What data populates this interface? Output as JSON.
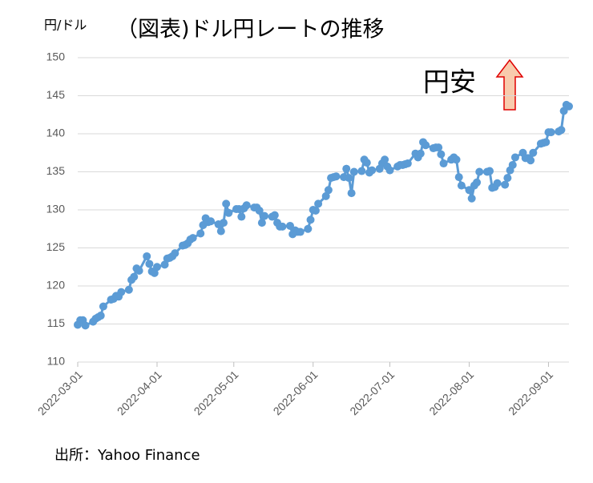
{
  "chart_data": {
    "type": "line",
    "title": "（図表)ドル円レートの推移",
    "y_label": "円/ドル",
    "annotation": "円安",
    "source": "出所：Yahoo  Finance",
    "color": "#5b9bd5",
    "grid": true,
    "xlim": [
      "2022-03-01",
      "2022-09-09"
    ],
    "xticks": [
      "2022-03-01",
      "2022-04-01",
      "2022-05-01",
      "2022-06-01",
      "2022-07-01",
      "2022-08-01",
      "2022-09-01"
    ],
    "ylim": [
      110,
      150
    ],
    "yticks": [
      110,
      115,
      120,
      125,
      130,
      135,
      140,
      145,
      150
    ],
    "x": [
      "2022-03-01",
      "2022-03-02",
      "2022-03-03",
      "2022-03-04",
      "2022-03-07",
      "2022-03-08",
      "2022-03-09",
      "2022-03-10",
      "2022-03-11",
      "2022-03-14",
      "2022-03-15",
      "2022-03-16",
      "2022-03-17",
      "2022-03-18",
      "2022-03-21",
      "2022-03-22",
      "2022-03-23",
      "2022-03-24",
      "2022-03-25",
      "2022-03-28",
      "2022-03-29",
      "2022-03-30",
      "2022-03-31",
      "2022-04-01",
      "2022-04-04",
      "2022-04-05",
      "2022-04-06",
      "2022-04-07",
      "2022-04-08",
      "2022-04-11",
      "2022-04-12",
      "2022-04-13",
      "2022-04-14",
      "2022-04-15",
      "2022-04-18",
      "2022-04-19",
      "2022-04-20",
      "2022-04-21",
      "2022-04-22",
      "2022-04-25",
      "2022-04-26",
      "2022-04-27",
      "2022-04-28",
      "2022-04-29",
      "2022-05-02",
      "2022-05-03",
      "2022-05-04",
      "2022-05-05",
      "2022-05-06",
      "2022-05-09",
      "2022-05-10",
      "2022-05-11",
      "2022-05-12",
      "2022-05-13",
      "2022-05-16",
      "2022-05-17",
      "2022-05-18",
      "2022-05-19",
      "2022-05-20",
      "2022-05-23",
      "2022-05-24",
      "2022-05-25",
      "2022-05-26",
      "2022-05-27",
      "2022-05-30",
      "2022-05-31",
      "2022-06-01",
      "2022-06-02",
      "2022-06-03",
      "2022-06-06",
      "2022-06-07",
      "2022-06-08",
      "2022-06-09",
      "2022-06-10",
      "2022-06-13",
      "2022-06-14",
      "2022-06-15",
      "2022-06-16",
      "2022-06-17",
      "2022-06-20",
      "2022-06-21",
      "2022-06-22",
      "2022-06-23",
      "2022-06-24",
      "2022-06-27",
      "2022-06-28",
      "2022-06-29",
      "2022-06-30",
      "2022-07-01",
      "2022-07-04",
      "2022-07-05",
      "2022-07-06",
      "2022-07-07",
      "2022-07-08",
      "2022-07-11",
      "2022-07-12",
      "2022-07-13",
      "2022-07-14",
      "2022-07-15",
      "2022-07-18",
      "2022-07-19",
      "2022-07-20",
      "2022-07-21",
      "2022-07-22",
      "2022-07-25",
      "2022-07-26",
      "2022-07-27",
      "2022-07-28",
      "2022-07-29",
      "2022-08-01",
      "2022-08-02",
      "2022-08-03",
      "2022-08-04",
      "2022-08-05",
      "2022-08-08",
      "2022-08-09",
      "2022-08-10",
      "2022-08-11",
      "2022-08-12",
      "2022-08-15",
      "2022-08-16",
      "2022-08-17",
      "2022-08-18",
      "2022-08-19",
      "2022-08-22",
      "2022-08-23",
      "2022-08-24",
      "2022-08-25",
      "2022-08-26",
      "2022-08-29",
      "2022-08-30",
      "2022-08-31",
      "2022-09-01",
      "2022-09-02",
      "2022-09-05",
      "2022-09-06",
      "2022-09-07",
      "2022-09-08",
      "2022-09-09"
    ],
    "values": [
      114.9,
      115.5,
      115.5,
      114.8,
      115.3,
      115.7,
      115.9,
      116.1,
      117.3,
      118.2,
      118.3,
      118.7,
      118.6,
      119.2,
      119.5,
      120.8,
      121.2,
      122.3,
      122.0,
      123.9,
      122.9,
      121.9,
      121.7,
      122.5,
      122.8,
      123.6,
      123.7,
      123.9,
      124.3,
      125.3,
      125.4,
      125.6,
      126.1,
      126.3,
      126.9,
      128.0,
      128.9,
      128.4,
      128.5,
      128.1,
      127.2,
      128.3,
      130.8,
      129.6,
      130.1,
      130.1,
      129.1,
      130.2,
      130.6,
      130.3,
      130.3,
      129.9,
      128.3,
      129.2,
      129.1,
      129.3,
      128.3,
      127.8,
      127.8,
      127.9,
      126.8,
      127.3,
      127.1,
      127.1,
      127.5,
      128.7,
      130.0,
      129.9,
      130.8,
      131.8,
      132.6,
      134.2,
      134.3,
      134.4,
      134.3,
      135.4,
      134.2,
      132.2,
      135.0,
      135.1,
      136.6,
      136.2,
      134.9,
      135.2,
      135.4,
      136.1,
      136.6,
      135.7,
      135.2,
      135.7,
      135.9,
      135.9,
      136.0,
      136.1,
      137.4,
      136.9,
      137.4,
      138.9,
      138.5,
      138.1,
      138.2,
      138.2,
      137.3,
      136.1,
      136.6,
      136.9,
      136.6,
      134.3,
      133.2,
      132.6,
      131.5,
      133.2,
      133.6,
      135.0,
      135.0,
      135.1,
      132.9,
      133.0,
      133.5,
      133.3,
      134.2,
      135.2,
      135.9,
      136.9,
      137.5,
      136.8,
      136.8,
      136.5,
      137.5,
      138.7,
      138.8,
      138.9,
      140.2,
      140.2,
      140.3,
      140.5,
      143.0,
      143.8,
      143.6
    ]
  }
}
